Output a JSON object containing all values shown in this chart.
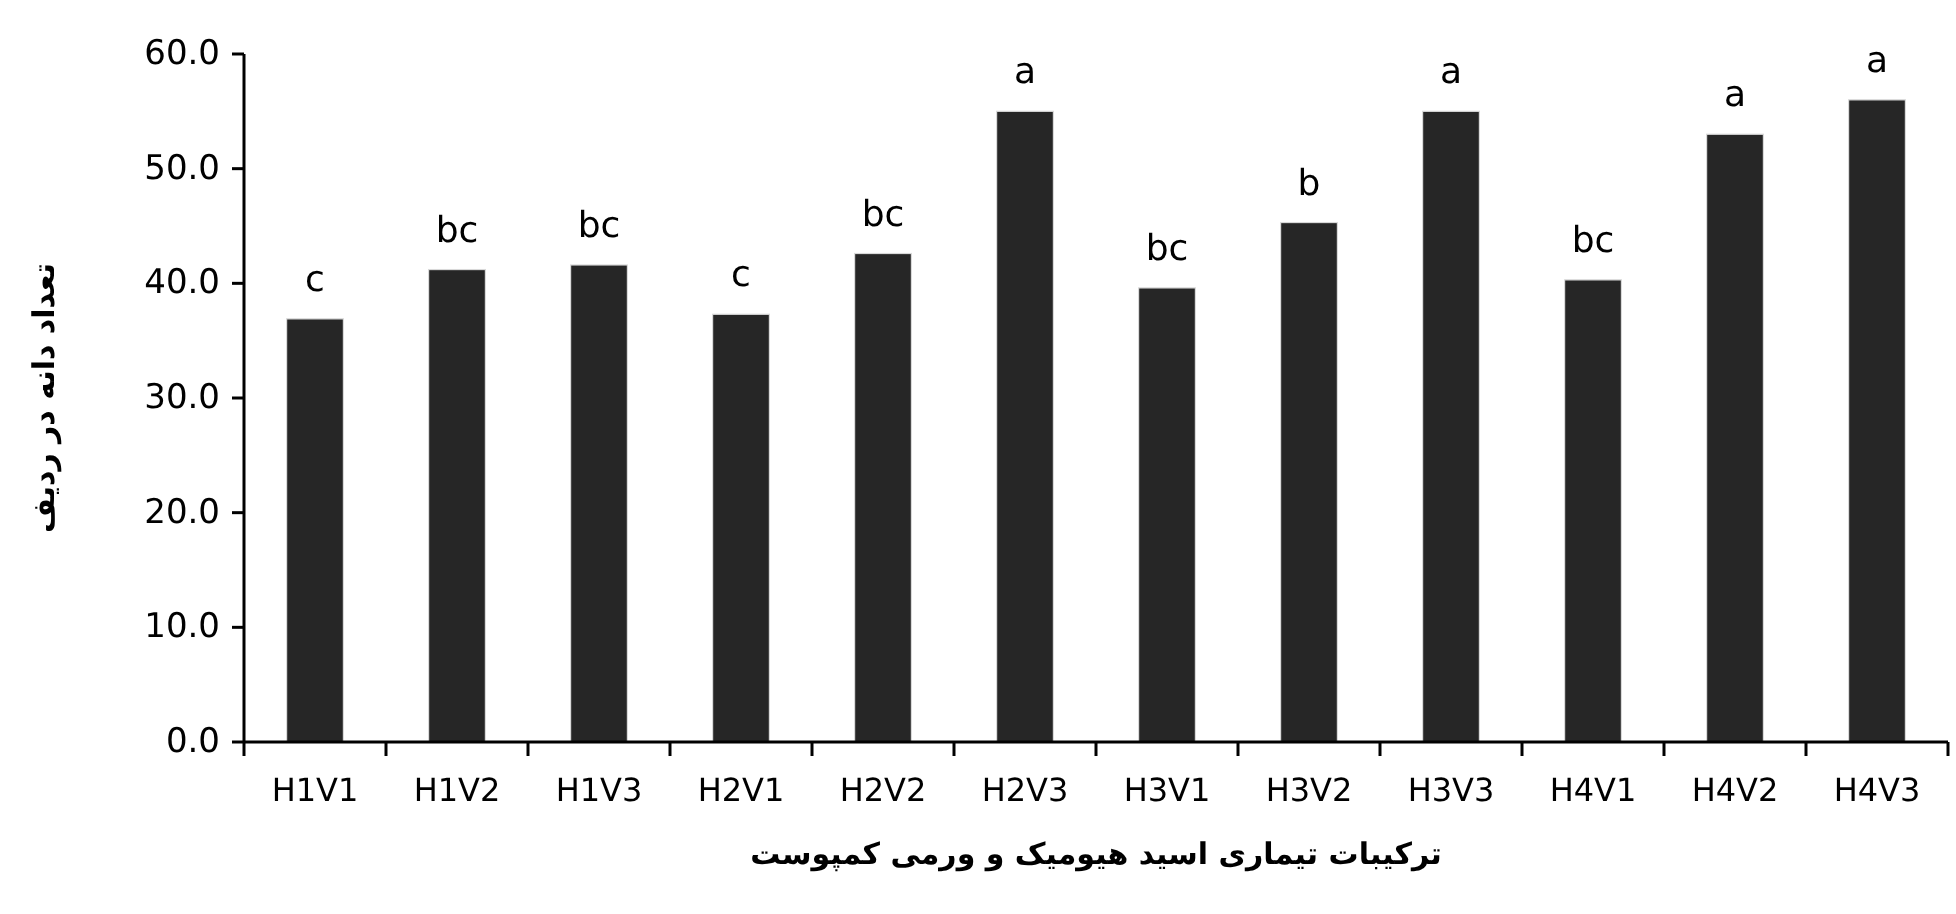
{
  "chart_data": {
    "type": "bar",
    "xlabel": "ترکیبات تیماری اسید هیومیک و ورمی کمپوست",
    "ylabel": "تعداد دانه در ردیف",
    "categories": [
      "H1V1",
      "H1V2",
      "H1V3",
      "H2V1",
      "H2V2",
      "H2V3",
      "H3V1",
      "H3V2",
      "H3V3",
      "H4V1",
      "H4V2",
      "H4V3"
    ],
    "values": [
      36.9,
      41.2,
      41.6,
      37.3,
      42.6,
      55.0,
      39.6,
      45.3,
      55.0,
      40.3,
      53.0,
      56.0
    ],
    "color": "#262626",
    "ylim": [
      0,
      60
    ],
    "yticks": [
      {
        "value": 0,
        "label": "0.0"
      },
      {
        "value": 10,
        "label": "10.0"
      },
      {
        "value": 20,
        "label": "20.0"
      },
      {
        "value": 30,
        "label": "30.0"
      },
      {
        "value": 40,
        "label": "40.0"
      },
      {
        "value": 50,
        "label": "50.0"
      },
      {
        "value": 60,
        "label": "60.0"
      }
    ],
    "annotations": [
      {
        "text": "c",
        "x": "H1V1",
        "y": 36.9
      },
      {
        "text": "bc",
        "x": "H1V2",
        "y": 41.2
      },
      {
        "text": "bc",
        "x": "H1V3",
        "y": 41.6
      },
      {
        "text": "c",
        "x": "H2V1",
        "y": 37.3
      },
      {
        "text": "bc",
        "x": "H2V2",
        "y": 42.6
      },
      {
        "text": "a",
        "x": "H2V3",
        "y": 55.0
      },
      {
        "text": "bc",
        "x": "H3V1",
        "y": 39.6
      },
      {
        "text": "b",
        "x": "H3V2",
        "y": 45.3
      },
      {
        "text": "a",
        "x": "H3V3",
        "y": 55.0
      },
      {
        "text": "bc",
        "x": "H4V1",
        "y": 40.3
      },
      {
        "text": "a",
        "x": "H4V2",
        "y": 53.0
      },
      {
        "text": "a",
        "x": "H4V3",
        "y": 56.0
      }
    ]
  }
}
